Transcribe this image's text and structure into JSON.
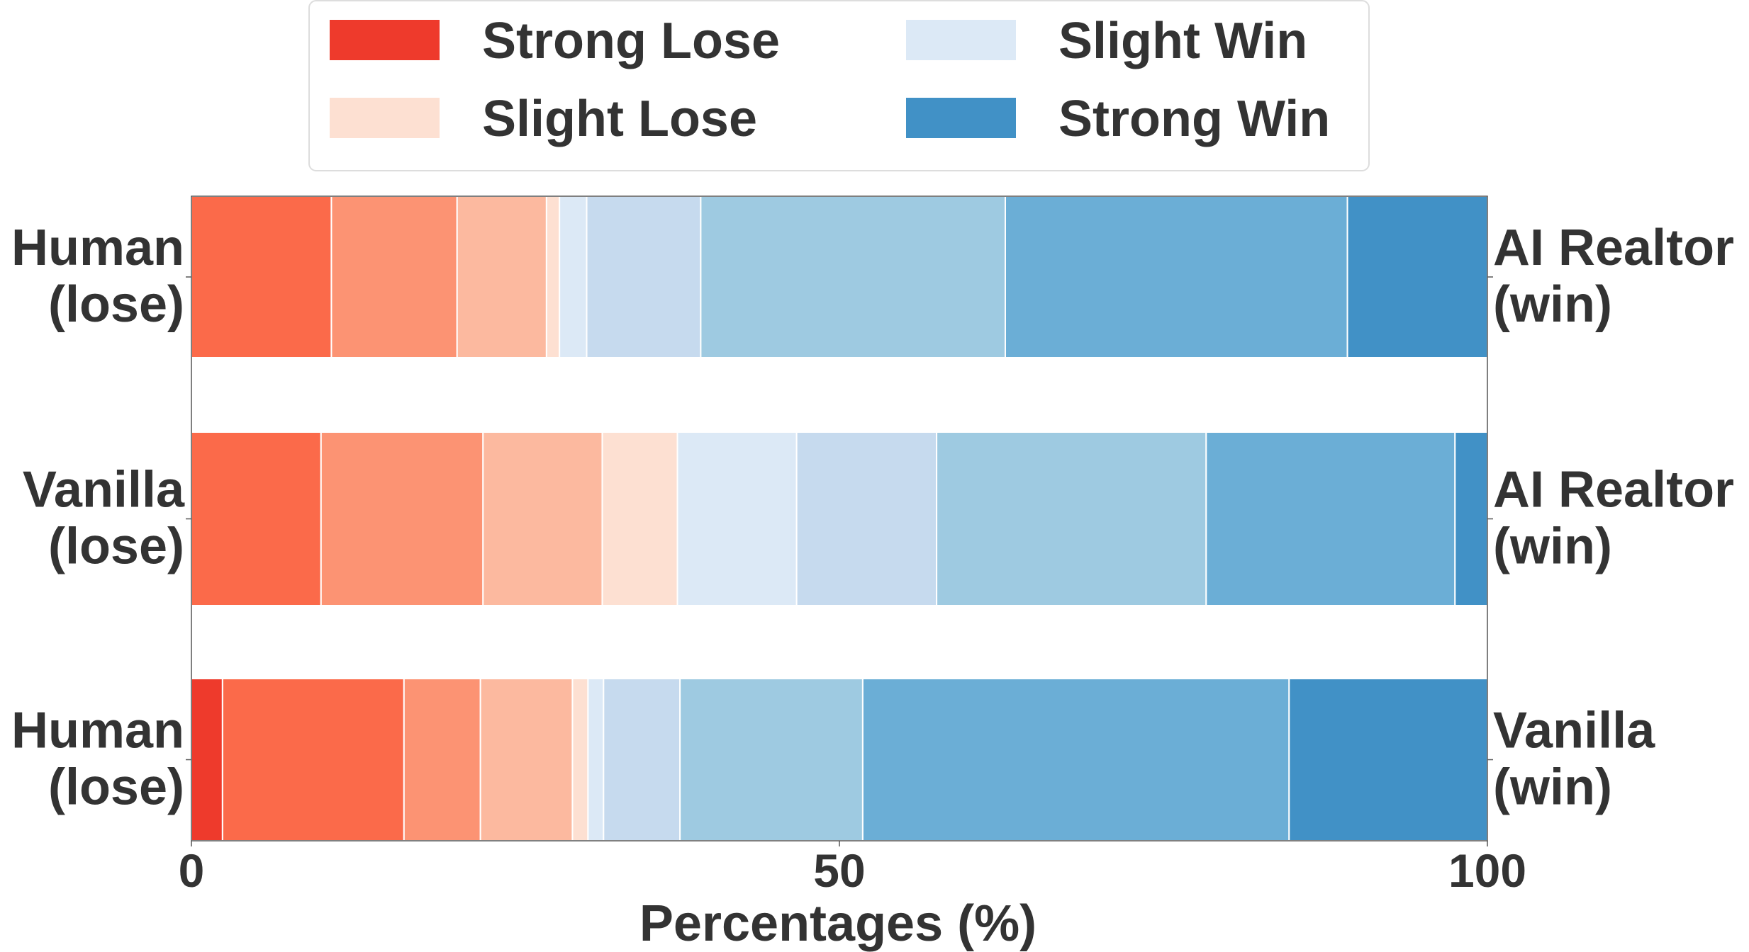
{
  "chart_data": {
    "type": "bar",
    "orientation": "horizontal",
    "stacked": true,
    "xlabel": "Percentages (%)",
    "ylabel": "",
    "xlim": [
      0,
      100
    ],
    "x_ticks": [
      "0",
      "50",
      "100"
    ],
    "legend": {
      "placement": "top-center",
      "entries": [
        {
          "label": "Strong Lose",
          "color": "#ee3a2c"
        },
        {
          "label": "Slight Lose",
          "color": "#fde0d2"
        },
        {
          "label": "Slight Win",
          "color": "#dce9f6"
        },
        {
          "label": "Strong Win",
          "color": "#4191c6"
        }
      ]
    },
    "segment_palette": [
      "#ee3a2c",
      "#fb6a4a",
      "#fc9373",
      "#fcb99f",
      "#fde0d2",
      "#dce9f6",
      "#c6daee",
      "#9ecae1",
      "#6baed6",
      "#4191c6"
    ],
    "rows": [
      {
        "left_label": [
          "Human",
          "(lose)"
        ],
        "right_label": [
          "AI Realtor",
          "(win)"
        ],
        "segments": [
          {
            "value": 10.8,
            "color_index": 1
          },
          {
            "value": 9.7,
            "color_index": 2
          },
          {
            "value": 6.9,
            "color_index": 3
          },
          {
            "value": 1.0,
            "color_index": 4
          },
          {
            "value": 2.1,
            "color_index": 5
          },
          {
            "value": 8.8,
            "color_index": 6
          },
          {
            "value": 23.5,
            "color_index": 7
          },
          {
            "value": 26.4,
            "color_index": 8
          },
          {
            "value": 10.8,
            "color_index": 9
          }
        ]
      },
      {
        "left_label": [
          "Vanilla",
          "(lose)"
        ],
        "right_label": [
          "AI Realtor",
          "(win)"
        ],
        "segments": [
          {
            "value": 10.0,
            "color_index": 1
          },
          {
            "value": 12.5,
            "color_index": 2
          },
          {
            "value": 9.2,
            "color_index": 3
          },
          {
            "value": 5.8,
            "color_index": 4
          },
          {
            "value": 9.2,
            "color_index": 5
          },
          {
            "value": 10.8,
            "color_index": 6
          },
          {
            "value": 20.8,
            "color_index": 7
          },
          {
            "value": 19.2,
            "color_index": 8
          },
          {
            "value": 2.5,
            "color_index": 9
          }
        ]
      },
      {
        "left_label": [
          "Human",
          "(lose)"
        ],
        "right_label": [
          "Vanilla",
          "(win)"
        ],
        "segments": [
          {
            "value": 2.4,
            "color_index": 0
          },
          {
            "value": 14.0,
            "color_index": 1
          },
          {
            "value": 5.9,
            "color_index": 2
          },
          {
            "value": 7.1,
            "color_index": 3
          },
          {
            "value": 1.2,
            "color_index": 4
          },
          {
            "value": 1.2,
            "color_index": 5
          },
          {
            "value": 5.9,
            "color_index": 6
          },
          {
            "value": 14.1,
            "color_index": 7
          },
          {
            "value": 32.9,
            "color_index": 8
          },
          {
            "value": 15.3,
            "color_index": 9
          }
        ]
      }
    ]
  }
}
